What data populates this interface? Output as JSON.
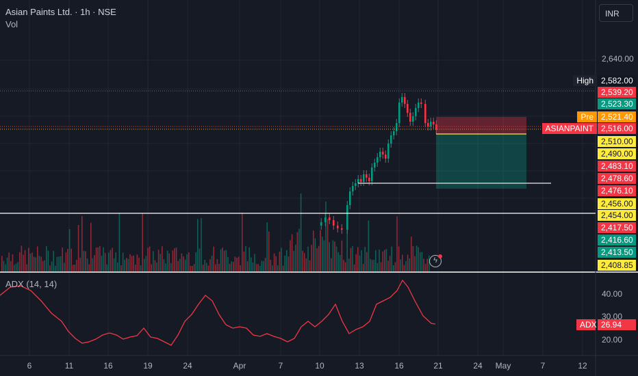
{
  "header": {
    "symbol_line": "Asian Paints Ltd. · 1h · NSE",
    "volume_label": "Vol",
    "currency": "INR"
  },
  "adx": {
    "label": "ADX (14, 14)",
    "tag_name": "ADX",
    "tag_value": "26.94",
    "ticks": [
      "40.00",
      "30.00",
      "20.00"
    ]
  },
  "price_axis": {
    "tick": "2,640.00"
  },
  "price_tags": [
    {
      "text": "High",
      "value": "2,582.00",
      "bg": "#131722",
      "fg": "#ffffff",
      "tag_bg": "#1e222d"
    },
    {
      "value": "2,539.20",
      "bg": "#f23645",
      "fg": "#ffffff"
    },
    {
      "value": "2,523.30",
      "bg": "#089981",
      "fg": "#ffffff"
    },
    {
      "text": "Pre",
      "value": "2,521.40",
      "bg": "#ff9800",
      "fg": "#ffffff"
    },
    {
      "text": "ASIANPAINT",
      "value": "2,516.00",
      "bg": "#f23645",
      "fg": "#ffffff"
    },
    {
      "value": "2,510.00",
      "bg": "#ffeb3b",
      "fg": "#131722"
    },
    {
      "value": "2,490.00",
      "bg": "#ffeb3b",
      "fg": "#131722"
    },
    {
      "value": "2,483.10",
      "bg": "#f23645",
      "fg": "#ffffff"
    },
    {
      "value": "2,478.60",
      "bg": "#f23645",
      "fg": "#ffffff"
    },
    {
      "value": "2,476.10",
      "bg": "#f23645",
      "fg": "#ffffff"
    },
    {
      "value": "2,456.00",
      "bg": "#ffeb3b",
      "fg": "#131722"
    },
    {
      "value": "2,454.00",
      "bg": "#ffeb3b",
      "fg": "#131722"
    },
    {
      "value": "2,417.50",
      "bg": "#f23645",
      "fg": "#ffffff"
    },
    {
      "value": "2,416.60",
      "bg": "#089981",
      "fg": "#ffffff"
    },
    {
      "value": "2,413.50",
      "bg": "#089981",
      "fg": "#ffffff"
    },
    {
      "value": "2,408.85",
      "bg": "#ffeb3b",
      "fg": "#131722"
    }
  ],
  "x_axis": [
    "6",
    "11",
    "16",
    "19",
    "24",
    "Apr",
    "7",
    "10",
    "13",
    "16",
    "21",
    "24",
    "May",
    "7",
    "12"
  ],
  "colors": {
    "up": "#089981",
    "down": "#f23645",
    "adx_line": "#f23645",
    "background": "#161a25",
    "grid": "#232733"
  }
}
